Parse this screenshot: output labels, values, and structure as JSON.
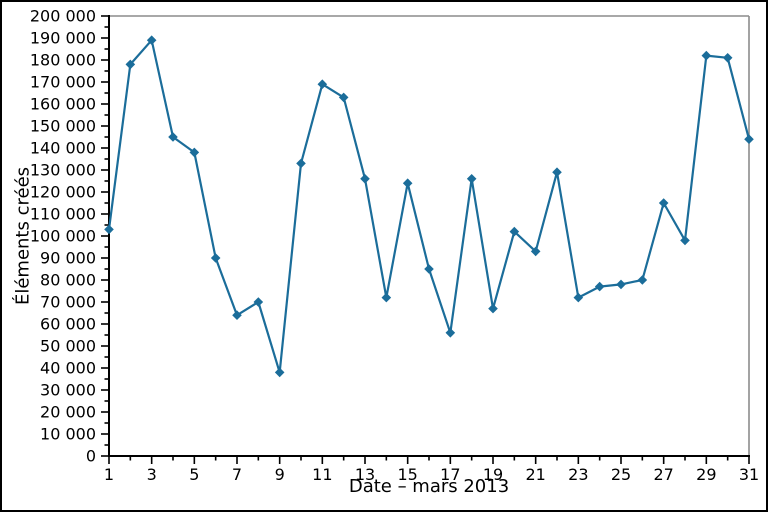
{
  "chart_data": {
    "type": "line",
    "title": "",
    "xlabel": "Date – mars 2013",
    "ylabel": "Éléments créés",
    "x": [
      1,
      2,
      3,
      4,
      5,
      6,
      7,
      8,
      9,
      10,
      11,
      12,
      13,
      14,
      15,
      16,
      17,
      18,
      19,
      20,
      21,
      22,
      23,
      24,
      25,
      26,
      27,
      28,
      29,
      30,
      31
    ],
    "values": [
      103000,
      178000,
      189000,
      145000,
      138000,
      90000,
      64000,
      70000,
      38000,
      133000,
      169000,
      163000,
      126000,
      72000,
      124000,
      85000,
      56000,
      126000,
      67000,
      102000,
      93000,
      129000,
      72000,
      77000,
      78000,
      80000,
      115000,
      98000,
      182000,
      181000,
      144000
    ],
    "xlim": [
      1,
      31
    ],
    "ylim": [
      0,
      200000
    ],
    "x_tick_step": 1,
    "x_label_step": 2,
    "x_ticks_labeled": [
      1,
      3,
      5,
      7,
      9,
      11,
      13,
      15,
      17,
      19,
      21,
      23,
      25,
      27,
      29,
      31
    ],
    "y_major_step": 10000,
    "y_minor_step": 5000,
    "y_ticks_labeled": [
      0,
      10000,
      20000,
      30000,
      40000,
      50000,
      60000,
      70000,
      80000,
      90000,
      100000,
      110000,
      120000,
      130000,
      140000,
      150000,
      160000,
      170000,
      180000,
      190000,
      200000
    ],
    "thousands_separator": " ",
    "grid": false,
    "legend": null,
    "line_color": "#1b6d9a",
    "marker": "diamond",
    "spine_color_left_bottom": "#000000",
    "spine_color_top_right": "#8c8c8c",
    "text_color": "#000000"
  }
}
